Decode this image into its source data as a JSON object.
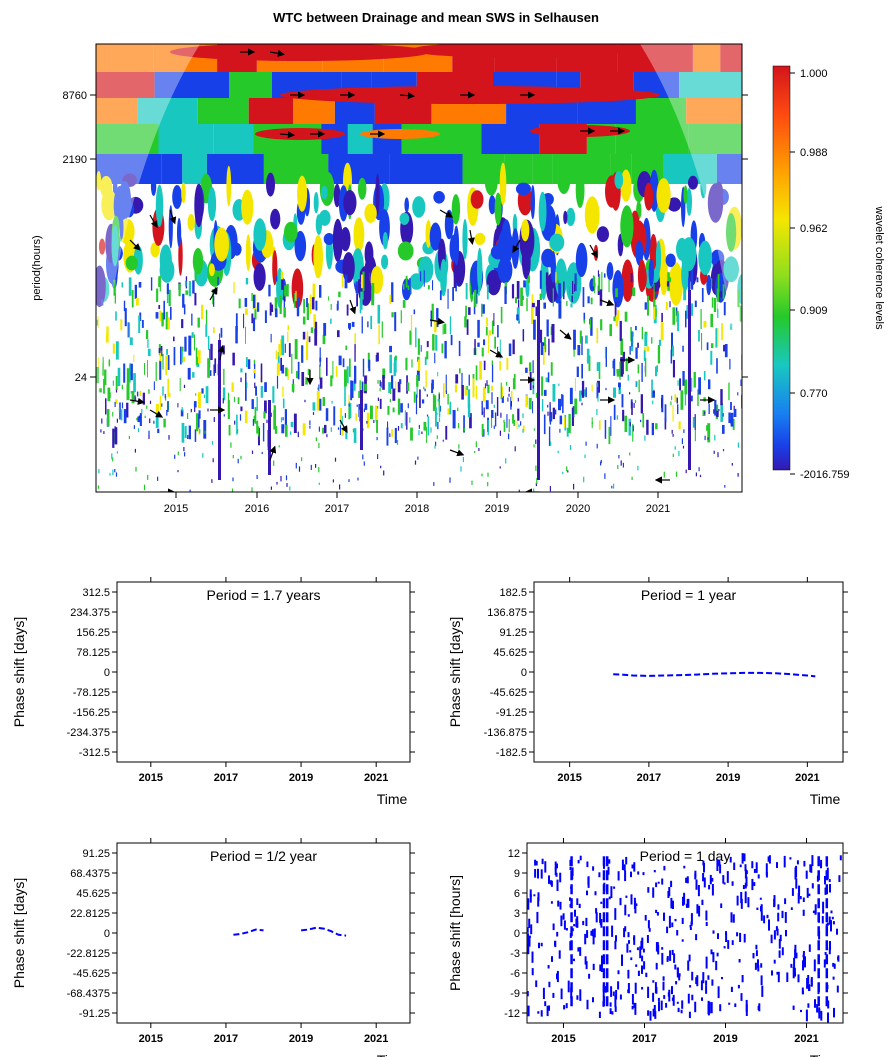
{
  "chart_data": [
    {
      "type": "heatmap",
      "title": "WTC between Drainage and mean SWS in Selhausen",
      "ylabel": "period(hours)",
      "xlabel": "",
      "x_ticks": [
        "2015",
        "2016",
        "2017",
        "2018",
        "2019",
        "2020",
        "2021"
      ],
      "y_ticks": [
        "8760",
        "2190",
        "24"
      ],
      "colorbar_label": "wavelet coherence levels",
      "colorbar_ticks": [
        "1.000",
        "0.988",
        "0.962",
        "0.909",
        "0.770",
        "-2016.759"
      ],
      "colorbar_colors": [
        "#d4141c",
        "#ff7a00",
        "#f5e600",
        "#25c92a",
        "#18c8c0",
        "#1840e8",
        "#3418b0"
      ],
      "scale": "log period axis"
    },
    {
      "type": "line",
      "title": "Period = 1.7 years",
      "xlabel": "Time",
      "ylabel": "Phase shift [days]",
      "x_ticks": [
        "2015",
        "2017",
        "2019",
        "2021"
      ],
      "y_ticks": [
        "312.5",
        "234.375",
        "156.25",
        "78.125",
        "0",
        "-78.125",
        "-156.25",
        "-234.375",
        "-312.5"
      ],
      "ylim": [
        -312.5,
        312.5
      ],
      "xlim": [
        2014.1,
        2021.9
      ],
      "series": [
        {
          "values": []
        }
      ],
      "line_color": "#0000ff"
    },
    {
      "type": "line",
      "title": "Period = 1 year",
      "xlabel": "Time",
      "ylabel": "Phase shift [days]",
      "x_ticks": [
        "2015",
        "2017",
        "2019",
        "2021"
      ],
      "y_ticks": [
        "182.5",
        "136.875",
        "91.25",
        "45.625",
        "0",
        "-45.625",
        "-91.25",
        "-136.875",
        "-182.5"
      ],
      "ylim": [
        -182.5,
        182.5
      ],
      "xlim": [
        2014.1,
        2021.9
      ],
      "series": [
        {
          "x": [
            2016.1,
            2016.3,
            2016.6,
            2017.0,
            2017.4,
            2017.8,
            2018.2,
            2018.6,
            2019.0,
            2019.4,
            2019.8,
            2020.2,
            2020.6,
            2021.0,
            2021.2
          ],
          "y": [
            -5,
            -6,
            -8,
            -9,
            -8,
            -7,
            -6,
            -4,
            -3,
            -2,
            -2,
            -3,
            -5,
            -8,
            -10
          ]
        }
      ],
      "line_color": "#0000ff"
    },
    {
      "type": "line",
      "title": "Period = 1/2 year",
      "xlabel": "Time",
      "ylabel": "Phase shift [days]",
      "x_ticks": [
        "2015",
        "2017",
        "2019",
        "2021"
      ],
      "y_ticks": [
        "91.25",
        "68.4375",
        "45.625",
        "22.8125",
        "0",
        "-22.8125",
        "-45.625",
        "-68.4375",
        "-91.25"
      ],
      "ylim": [
        -91.25,
        91.25
      ],
      "xlim": [
        2014.1,
        2021.9
      ],
      "series": [
        {
          "x": [
            2017.2,
            2017.4,
            2017.6,
            2017.8,
            2018.0
          ],
          "y": [
            -2,
            -1,
            1,
            4,
            3
          ]
        },
        {
          "x": [
            2019.0,
            2019.2,
            2019.4,
            2019.6,
            2019.8,
            2020.0,
            2020.2
          ],
          "y": [
            3,
            4,
            6,
            5,
            2,
            -2,
            -3
          ]
        }
      ],
      "line_color": "#0000ff"
    },
    {
      "type": "scatter",
      "title": "Period = 1 day",
      "xlabel": "Time",
      "ylabel": "Phase shift [hours]",
      "x_ticks": [
        "2015",
        "2017",
        "2019",
        "2021"
      ],
      "y_ticks": [
        "12",
        "9",
        "6",
        "3",
        "0",
        "-3",
        "-6",
        "-9",
        "-12"
      ],
      "ylim": [
        -12.5,
        12.5
      ],
      "xlim": [
        2014.1,
        2021.9
      ],
      "line_color": "#0000ff"
    }
  ]
}
